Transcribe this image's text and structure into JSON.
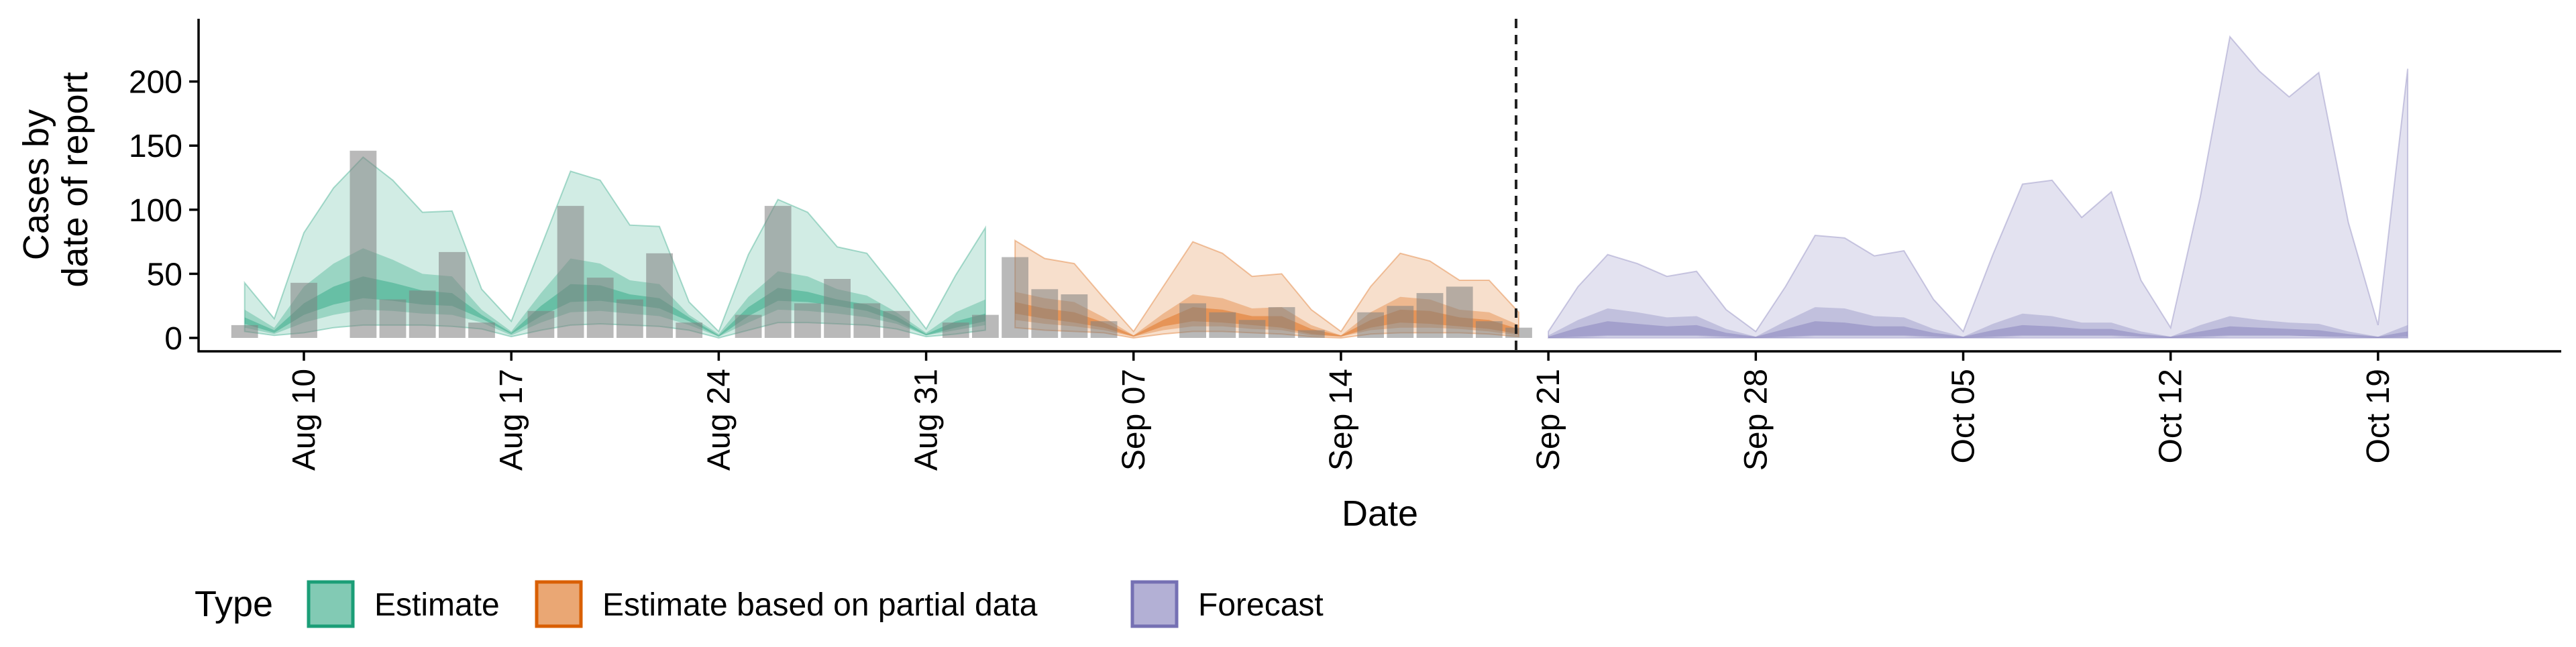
{
  "chart_data": {
    "type": "area",
    "xlabel": "Date",
    "ylabel_lines": [
      "Cases by",
      "date of report"
    ],
    "ylim": [
      -10,
      240
    ],
    "xlim": [
      "2020-08-03",
      "2020-10-23"
    ],
    "y_ticks": [
      0,
      50,
      100,
      150,
      200
    ],
    "x_ticks": [
      {
        "date": "2020-08-10",
        "label": "Aug 10"
      },
      {
        "date": "2020-08-17",
        "label": "Aug 17"
      },
      {
        "date": "2020-08-24",
        "label": "Aug 24"
      },
      {
        "date": "2020-08-31",
        "label": "Aug 31"
      },
      {
        "date": "2020-09-07",
        "label": "Sep 07"
      },
      {
        "date": "2020-09-14",
        "label": "Sep 14"
      },
      {
        "date": "2020-09-21",
        "label": "Sep 21"
      },
      {
        "date": "2020-09-28",
        "label": "Sep 28"
      },
      {
        "date": "2020-10-05",
        "label": "Oct 05"
      },
      {
        "date": "2020-10-12",
        "label": "Oct 12"
      },
      {
        "date": "2020-10-19",
        "label": "Oct 19"
      }
    ],
    "forecast_date": "2020-09-20",
    "grid": false,
    "legend": {
      "title": "Type",
      "position": "bottom",
      "items": [
        {
          "label": "Estimate",
          "color": "#1b9e77"
        },
        {
          "label": "Estimate based on partial data",
          "color": "#d95f02"
        },
        {
          "label": "Forecast",
          "color": "#7570b3"
        }
      ]
    },
    "observed_cases": {
      "color": "#808080",
      "dates": [
        "2020-08-08",
        "2020-08-09",
        "2020-08-10",
        "2020-08-11",
        "2020-08-12",
        "2020-08-13",
        "2020-08-14",
        "2020-08-15",
        "2020-08-16",
        "2020-08-17",
        "2020-08-18",
        "2020-08-19",
        "2020-08-20",
        "2020-08-21",
        "2020-08-22",
        "2020-08-23",
        "2020-08-24",
        "2020-08-25",
        "2020-08-26",
        "2020-08-27",
        "2020-08-28",
        "2020-08-29",
        "2020-08-30",
        "2020-08-31",
        "2020-09-01",
        "2020-09-02",
        "2020-09-03",
        "2020-09-04",
        "2020-09-05",
        "2020-09-06",
        "2020-09-07",
        "2020-09-08",
        "2020-09-09",
        "2020-09-10",
        "2020-09-11",
        "2020-09-12",
        "2020-09-13",
        "2020-09-14",
        "2020-09-15",
        "2020-09-16",
        "2020-09-17",
        "2020-09-18",
        "2020-09-19",
        "2020-09-20"
      ],
      "values": [
        10,
        0,
        43,
        0,
        146,
        30,
        37,
        67,
        12,
        0,
        21,
        103,
        47,
        30,
        66,
        12,
        0,
        18,
        103,
        27,
        46,
        27,
        21,
        0,
        12,
        18,
        63,
        38,
        34,
        13,
        0,
        0,
        27,
        20,
        14,
        24,
        6,
        0,
        20,
        25,
        35,
        40,
        13,
        8
      ]
    },
    "series": [
      {
        "name": "Estimate",
        "color": "#1b9e77",
        "dates": [
          "2020-08-08",
          "2020-08-09",
          "2020-08-10",
          "2020-08-11",
          "2020-08-12",
          "2020-08-13",
          "2020-08-14",
          "2020-08-15",
          "2020-08-16",
          "2020-08-17",
          "2020-08-18",
          "2020-08-19",
          "2020-08-20",
          "2020-08-21",
          "2020-08-22",
          "2020-08-23",
          "2020-08-24",
          "2020-08-25",
          "2020-08-26",
          "2020-08-27",
          "2020-08-28",
          "2020-08-29",
          "2020-08-30",
          "2020-08-31",
          "2020-09-01",
          "2020-09-02"
        ],
        "bands": [
          {
            "lower": [
              5,
              2,
              4,
              8,
              10,
              10,
              10,
              9,
              7,
              1,
              6,
              10,
              11,
              10,
              9,
              6,
              0,
              6,
              12,
              12,
              11,
              10,
              7,
              1,
              3,
              6
            ],
            "upper": [
              43,
              15,
              82,
              117,
              141,
              123,
              98,
              99,
              38,
              13,
              71,
              130,
              123,
              88,
              87,
              28,
              5,
              65,
              108,
              98,
              71,
              66,
              37,
              7,
              49,
              86
            ]
          },
          {
            "lower": [
              8,
              3,
              12,
              18,
              22,
              21,
              19,
              18,
              12,
              2,
              12,
              20,
              21,
              19,
              17,
              10,
              1,
              12,
              22,
              21,
              19,
              16,
              11,
              2,
              6,
              10
            ],
            "upper": [
              22,
              8,
              40,
              58,
              70,
              61,
              50,
              48,
              22,
              5,
              35,
              62,
              58,
              45,
              42,
              18,
              3,
              32,
              52,
              48,
              38,
              33,
              20,
              4,
              20,
              30
            ]
          },
          {
            "lower": [
              11,
              4,
              18,
              26,
              31,
              29,
              26,
              25,
              15,
              3,
              17,
              28,
              29,
              26,
              23,
              13,
              1,
              17,
              29,
              28,
              25,
              21,
              13,
              2,
              8,
              13
            ],
            "upper": [
              16,
              6,
              27,
              40,
              48,
              43,
              37,
              35,
              18,
              4,
              25,
              42,
              41,
              34,
              31,
              16,
              2,
              24,
              39,
              36,
              30,
              26,
              17,
              3,
              13,
              19
            ]
          }
        ]
      },
      {
        "name": "Estimate based on partial data",
        "color": "#d95f02",
        "dates": [
          "2020-09-03",
          "2020-09-04",
          "2020-09-05",
          "2020-09-06",
          "2020-09-07",
          "2020-09-08",
          "2020-09-09",
          "2020-09-10",
          "2020-09-11",
          "2020-09-12",
          "2020-09-13",
          "2020-09-14",
          "2020-09-15",
          "2020-09-16",
          "2020-09-17",
          "2020-09-18",
          "2020-09-19",
          "2020-09-20"
        ],
        "bands": [
          {
            "lower": [
              8,
              6,
              5,
              4,
              0,
              3,
              5,
              5,
              4,
              3,
              1,
              0,
              3,
              4,
              4,
              4,
              3,
              1
            ],
            "upper": [
              76,
              62,
              58,
              31,
              5,
              40,
              75,
              66,
              48,
              50,
              22,
              5,
              40,
              66,
              60,
              45,
              45,
              20
            ]
          },
          {
            "lower": [
              14,
              11,
              9,
              6,
              1,
              6,
              9,
              9,
              7,
              6,
              2,
              1,
              6,
              8,
              8,
              7,
              5,
              2
            ],
            "upper": [
              36,
              31,
              28,
              16,
              2,
              19,
              34,
              31,
              23,
              24,
              10,
              2,
              20,
              32,
              30,
              22,
              20,
              10
            ]
          },
          {
            "lower": [
              19,
              15,
              12,
              8,
              1,
              9,
              13,
              12,
              10,
              8,
              3,
              1,
              8,
              12,
              11,
              9,
              7,
              3
            ],
            "upper": [
              28,
              23,
              20,
              12,
              2,
              14,
              24,
              22,
              17,
              17,
              7,
              2,
              14,
              22,
              21,
              16,
              14,
              7
            ]
          }
        ]
      },
      {
        "name": "Forecast",
        "color": "#7570b3",
        "dates": [
          "2020-09-21",
          "2020-09-22",
          "2020-09-23",
          "2020-09-24",
          "2020-09-25",
          "2020-09-26",
          "2020-09-27",
          "2020-09-28",
          "2020-09-29",
          "2020-09-30",
          "2020-10-01",
          "2020-10-02",
          "2020-10-03",
          "2020-10-04",
          "2020-10-05",
          "2020-10-06",
          "2020-10-07",
          "2020-10-08",
          "2020-10-09",
          "2020-10-10",
          "2020-10-11",
          "2020-10-12",
          "2020-10-13",
          "2020-10-14",
          "2020-10-15",
          "2020-10-16",
          "2020-10-17",
          "2020-10-18",
          "2020-10-19",
          "2020-10-20"
        ],
        "bands": [
          {
            "lower": [
              0,
              0,
              0,
              0,
              0,
              0,
              0,
              0,
              0,
              0,
              0,
              0,
              0,
              0,
              0,
              0,
              0,
              0,
              0,
              0,
              0,
              0,
              0,
              0,
              0,
              0,
              0,
              0,
              0,
              0
            ],
            "upper": [
              5,
              40,
              65,
              58,
              48,
              52,
              22,
              5,
              40,
              80,
              78,
              64,
              68,
              30,
              5,
              65,
              120,
              123,
              94,
              114,
              45,
              8,
              110,
              235,
              208,
              188,
              207,
              90,
              10,
              210
            ]
          },
          {
            "lower": [
              0,
              0,
              1,
              1,
              1,
              1,
              0,
              0,
              0,
              1,
              1,
              1,
              1,
              0,
              0,
              0,
              1,
              1,
              1,
              1,
              0,
              0,
              0,
              1,
              1,
              1,
              1,
              0,
              0,
              0
            ],
            "upper": [
              2,
              14,
              23,
              20,
              16,
              17,
              7,
              1,
              13,
              24,
              23,
              17,
              16,
              7,
              1,
              11,
              19,
              17,
              12,
              12,
              5,
              1,
              10,
              17,
              14,
              12,
              11,
              5,
              1,
              10
            ]
          },
          {
            "lower": [
              0,
              1,
              2,
              2,
              2,
              2,
              1,
              0,
              1,
              2,
              2,
              2,
              2,
              1,
              0,
              1,
              2,
              2,
              2,
              2,
              1,
              0,
              1,
              2,
              2,
              2,
              1,
              1,
              0,
              1
            ],
            "upper": [
              1,
              8,
              13,
              11,
              9,
              10,
              4,
              1,
              7,
              13,
              12,
              9,
              9,
              4,
              1,
              6,
              10,
              9,
              7,
              7,
              3,
              1,
              5,
              9,
              8,
              7,
              6,
              3,
              1,
              5
            ]
          }
        ]
      }
    ]
  }
}
